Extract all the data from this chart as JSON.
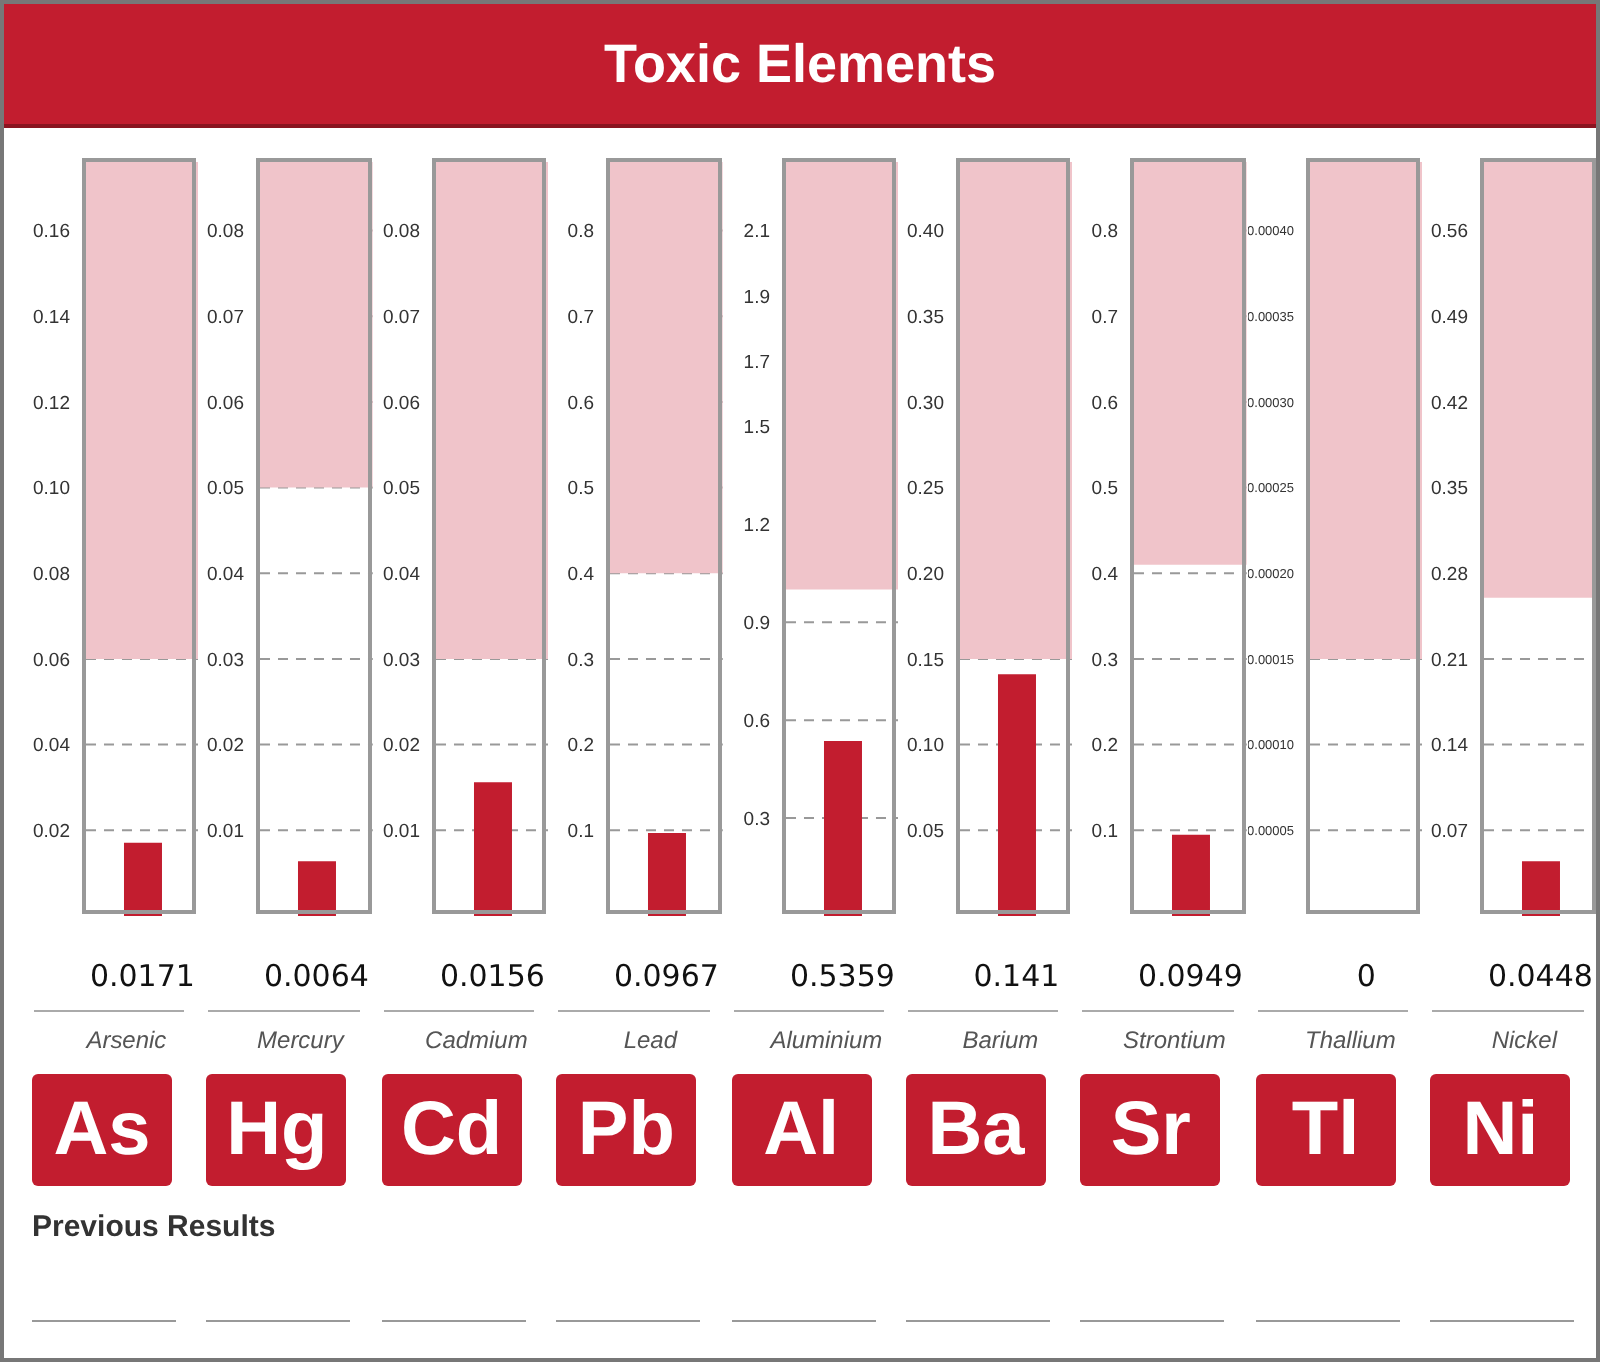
{
  "chart_data": [
    {
      "type": "other",
      "title": "Toxic Elements",
      "annotations": [
        "Previous Results"
      ]
    },
    {
      "type": "bar",
      "categories": [
        "Arsenic"
      ],
      "values": [
        0.0171
      ],
      "color": "#c21d2f",
      "ylim": [
        0,
        0.176
      ],
      "yticks": [
        0.02,
        0.04,
        0.06,
        0.08,
        {
          "value": 0.1,
          "label": "0.10"
        },
        0.12,
        0.14,
        0.16
      ],
      "grid": "y",
      "data_labels": true,
      "bands": [
        {
          "axis": "y",
          "from": 0.06,
          "to": 0.176,
          "color": "#f0c4ca"
        }
      ],
      "annotations": [
        "As"
      ]
    },
    {
      "type": "bar",
      "categories": [
        "Mercury"
      ],
      "values": [
        0.0064
      ],
      "color": "#c21d2f",
      "ylim": [
        0,
        0.088
      ],
      "yticks": [
        0.01,
        0.02,
        0.03,
        0.04,
        0.05,
        0.06,
        0.07,
        0.08
      ],
      "grid": "y",
      "data_labels": true,
      "bands": [
        {
          "axis": "y",
          "from": 0.05,
          "to": 0.088,
          "color": "#f0c4ca"
        }
      ],
      "annotations": [
        "Hg"
      ]
    },
    {
      "type": "bar",
      "categories": [
        "Cadmium"
      ],
      "values": [
        0.0156
      ],
      "color": "#c21d2f",
      "ylim": [
        0,
        0.088
      ],
      "yticks": [
        0.01,
        0.02,
        0.03,
        0.04,
        0.05,
        0.06,
        0.07,
        0.08
      ],
      "grid": "y",
      "data_labels": true,
      "bands": [
        {
          "axis": "y",
          "from": 0.03,
          "to": 0.088,
          "color": "#f0c4ca"
        }
      ],
      "annotations": [
        "Cd"
      ]
    },
    {
      "type": "bar",
      "categories": [
        "Lead"
      ],
      "values": [
        0.0967
      ],
      "color": "#c21d2f",
      "ylim": [
        0,
        0.88
      ],
      "yticks": [
        0.1,
        0.2,
        0.3,
        0.4,
        0.5,
        0.6,
        0.7,
        0.8
      ],
      "grid": "y",
      "data_labels": true,
      "bands": [
        {
          "axis": "y",
          "from": 0.4,
          "to": 0.88,
          "color": "#f0c4ca"
        }
      ],
      "annotations": [
        "Pb"
      ]
    },
    {
      "type": "bar",
      "categories": [
        "Aluminium"
      ],
      "values": [
        0.5359
      ],
      "color": "#c21d2f",
      "ylim": [
        0,
        2.31
      ],
      "yticks": [
        0.3,
        0.6,
        0.9,
        1.2,
        1.5,
        1.7,
        1.9,
        2.1
      ],
      "grid": "y",
      "data_labels": true,
      "bands": [
        {
          "axis": "y",
          "from": 1.0,
          "to": 2.31,
          "color": "#f0c4ca"
        }
      ],
      "annotations": [
        "Al"
      ]
    },
    {
      "type": "bar",
      "categories": [
        "Barium"
      ],
      "values": [
        0.141
      ],
      "color": "#c21d2f",
      "ylim": [
        0,
        0.44
      ],
      "yticks": [
        0.05,
        {
          "value": 0.1,
          "label": "0.10"
        },
        0.15,
        {
          "value": 0.2,
          "label": "0.20"
        },
        0.25,
        {
          "value": 0.3,
          "label": "0.30"
        },
        0.35,
        {
          "value": 0.4,
          "label": "0.40"
        }
      ],
      "grid": "y",
      "data_labels": true,
      "bands": [
        {
          "axis": "y",
          "from": 0.15,
          "to": 0.44,
          "color": "#f0c4ca"
        }
      ],
      "annotations": [
        "Ba"
      ]
    },
    {
      "type": "bar",
      "categories": [
        "Strontium"
      ],
      "values": [
        0.0949
      ],
      "color": "#c21d2f",
      "ylim": [
        0,
        0.88
      ],
      "yticks": [
        0.1,
        0.2,
        0.3,
        0.4,
        0.5,
        0.6,
        0.7,
        0.8
      ],
      "grid": "y",
      "data_labels": true,
      "bands": [
        {
          "axis": "y",
          "from": 0.41,
          "to": 0.88,
          "color": "#f0c4ca"
        }
      ],
      "annotations": [
        "Sr"
      ]
    },
    {
      "type": "bar",
      "categories": [
        "Thallium"
      ],
      "values": [
        0
      ],
      "color": "#c21d2f",
      "ylim": [
        0,
        0.00044
      ],
      "yticks": [
        {
          "value": 5e-05,
          "label": "0.00005"
        },
        {
          "value": 0.0001,
          "label": "0.00010"
        },
        {
          "value": 0.00015,
          "label": "0.00015"
        },
        {
          "value": 0.0002,
          "label": "0.00020"
        },
        {
          "value": 0.00025,
          "label": "0.00025"
        },
        {
          "value": 0.0003,
          "label": "0.00030"
        },
        {
          "value": 0.00035,
          "label": "0.00035"
        },
        {
          "value": 0.0004,
          "label": "0.00040"
        }
      ],
      "grid": "y",
      "data_labels": true,
      "bands": [
        {
          "axis": "y",
          "from": 0.00015,
          "to": 0.00044,
          "color": "#f0c4ca"
        }
      ],
      "annotations": [
        "Tl"
      ]
    },
    {
      "type": "bar",
      "categories": [
        "Nickel"
      ],
      "values": [
        0.0448
      ],
      "color": "#c21d2f",
      "ylim": [
        0,
        0.616
      ],
      "yticks": [
        0.07,
        0.14,
        0.21,
        0.28,
        0.35,
        0.42,
        0.49,
        0.56
      ],
      "grid": "y",
      "data_labels": true,
      "bands": [
        {
          "axis": "y",
          "from": 0.26,
          "to": 0.616,
          "color": "#f0c4ca"
        }
      ],
      "annotations": [
        "Ni"
      ]
    }
  ]
}
